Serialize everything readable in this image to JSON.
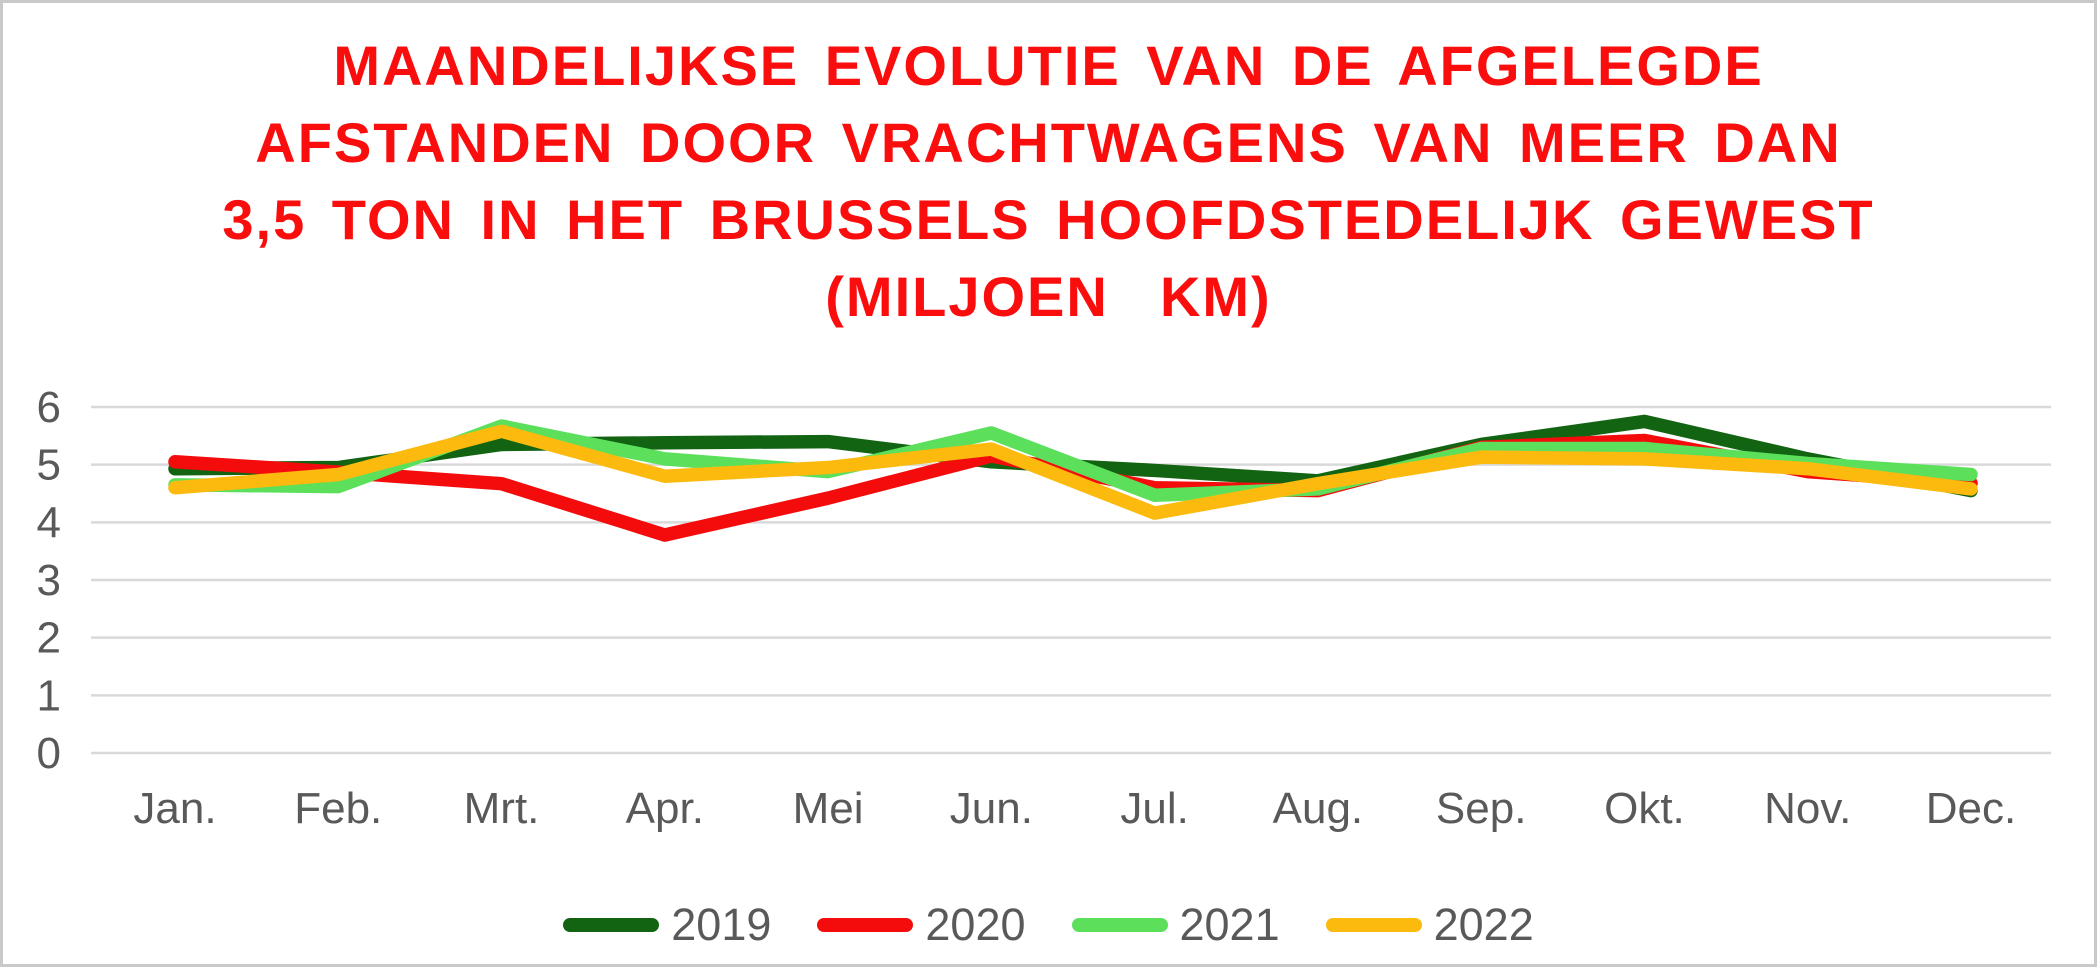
{
  "title": {
    "lines": [
      "MAANDELIJKSE EVOLUTIE VAN DE AFGELEGDE",
      "AFSTANDEN DOOR VRACHTWAGENS VAN MEER DAN",
      "3,5 TON IN HET BRUSSELS HOOFDSTEDELIJK GEWEST",
      "(MILJOEN  KM)"
    ],
    "color": "#F90D0D"
  },
  "chart_data": {
    "type": "line",
    "categories": [
      "Jan.",
      "Feb.",
      "Mrt.",
      "Apr.",
      "Mei",
      "Jun.",
      "Jul.",
      "Aug.",
      "Sep.",
      "Okt.",
      "Nov.",
      "Dec."
    ],
    "series": [
      {
        "name": "2019",
        "color": "#126412",
        "values": [
          4.93,
          4.95,
          5.35,
          5.38,
          5.4,
          5.05,
          4.9,
          4.72,
          5.35,
          5.75,
          5.1,
          4.55
        ]
      },
      {
        "name": "2020",
        "color": "#F40C0C",
        "values": [
          5.05,
          4.87,
          4.67,
          3.78,
          4.42,
          5.15,
          4.6,
          4.55,
          5.3,
          5.42,
          4.88,
          4.68
        ]
      },
      {
        "name": "2021",
        "color": "#5CE05C",
        "values": [
          4.65,
          4.62,
          5.67,
          5.1,
          4.88,
          5.55,
          4.47,
          4.58,
          5.28,
          5.28,
          5.02,
          4.83
        ]
      },
      {
        "name": "2022",
        "color": "#FBBA0D",
        "values": [
          4.6,
          4.83,
          5.58,
          4.8,
          4.95,
          5.27,
          4.16,
          4.67,
          5.13,
          5.1,
          4.93,
          4.58
        ]
      }
    ],
    "title": "MAANDELIJKSE EVOLUTIE VAN DE AFGELEGDE AFSTANDEN DOOR VRACHTWAGENS VAN MEER DAN 3,5 TON IN HET BRUSSELS HOOFDSTEDELIJK GEWEST (MILJOEN KM)",
    "xlabel": "",
    "ylabel": "",
    "ylim": [
      0,
      6
    ],
    "yticks": [
      0,
      1,
      2,
      3,
      4,
      5,
      6
    ],
    "grid": true,
    "legend_position": "bottom",
    "axis_label_color": "#595959",
    "gridline_color": "#D9D9D9"
  }
}
